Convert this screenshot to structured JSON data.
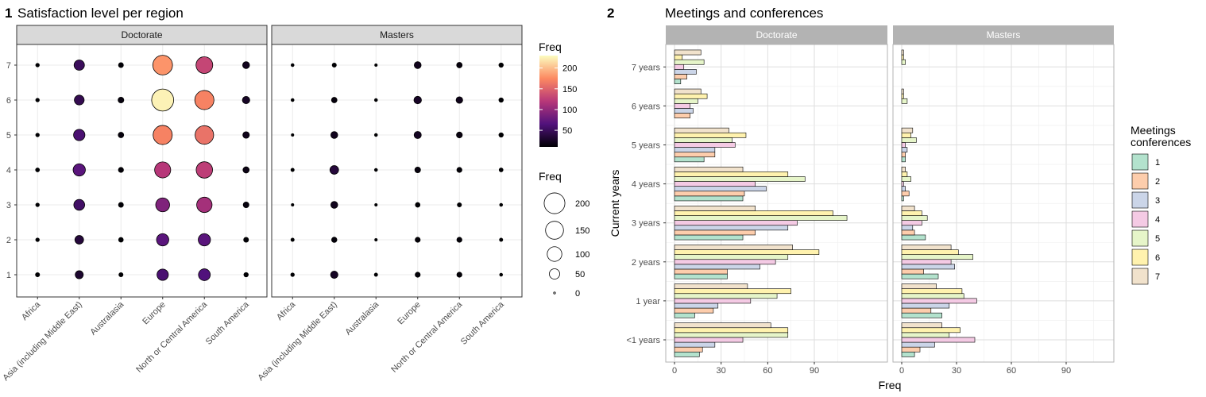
{
  "chart_data": [
    {
      "type": "scatter",
      "number": "1",
      "title": "Satisfaction level per region",
      "facets": [
        "Doctorate",
        "Masters"
      ],
      "x_categories": [
        "Africa",
        "Asia (including Middle East)",
        "Australasia",
        "Europe",
        "North or Central America",
        "South America"
      ],
      "y_ticks": [
        "1",
        "2",
        "3",
        "4",
        "5",
        "6",
        "7"
      ],
      "color_legend": {
        "title": "Freq",
        "ticks": [
          "200",
          "150",
          "100",
          "50"
        ],
        "range": [
          10,
          230
        ],
        "colors": [
          "#000004",
          "#51127c",
          "#b73779",
          "#fc8961",
          "#fcfdbf"
        ]
      },
      "size_legend": {
        "title": "Freq",
        "values": [
          200,
          150,
          100,
          50,
          0
        ],
        "labels": [
          "200",
          "150",
          "100",
          "50",
          "0"
        ],
        "max": 230
      },
      "grid": true,
      "legend_position": "right",
      "points": {
        "Doctorate": [
          [
            8,
            6,
            6,
            7,
            6,
            6,
            6
          ],
          [
            30,
            35,
            55,
            70,
            60,
            45,
            50
          ],
          [
            8,
            10,
            11,
            12,
            14,
            15,
            11
          ],
          [
            60,
            70,
            90,
            120,
            170,
            225,
            180
          ],
          [
            65,
            70,
            110,
            125,
            160,
            170,
            130
          ],
          [
            9,
            11,
            15,
            18,
            20,
            25,
            22
          ]
        ],
        "Masters": [
          [
            6,
            5,
            3,
            5,
            3,
            4,
            4
          ],
          [
            25,
            13,
            22,
            35,
            22,
            14,
            8
          ],
          [
            5,
            3,
            3,
            4,
            4,
            4,
            3
          ],
          [
            12,
            12,
            10,
            15,
            24,
            26,
            22
          ],
          [
            12,
            12,
            8,
            12,
            16,
            20,
            14
          ],
          [
            4,
            5,
            4,
            7,
            9,
            9,
            9
          ]
        ]
      }
    },
    {
      "type": "bar",
      "orientation": "horizontal",
      "number": "2",
      "title": "Meetings and conferences",
      "facets": [
        "Doctorate",
        "Masters"
      ],
      "categories": [
        "<1 years",
        "1 year",
        "2 years",
        "3 years",
        "4 years",
        "5 years",
        "6 years",
        "7 years"
      ],
      "xlabel": "Freq",
      "ylabel": "Current years",
      "xlim": [
        0,
        115
      ],
      "x_ticks": [
        0,
        30,
        60,
        90
      ],
      "grid": true,
      "legend_title_lines": [
        "Meetings",
        "conferences"
      ],
      "legend_position": "right",
      "series": [
        {
          "name": "1",
          "color": "#b3e2cd",
          "doctorate": [
            16,
            13,
            34,
            44,
            44,
            19,
            0,
            4
          ],
          "masters": [
            7,
            22,
            20,
            13,
            1,
            2,
            0,
            0
          ]
        },
        {
          "name": "2",
          "color": "#fdcdac",
          "doctorate": [
            18,
            25,
            34,
            52,
            45,
            26,
            10,
            8
          ],
          "masters": [
            10,
            16,
            12,
            7,
            4,
            2,
            0,
            0
          ]
        },
        {
          "name": "3",
          "color": "#cbd5e8",
          "doctorate": [
            26,
            28,
            55,
            73,
            59,
            26,
            12,
            14
          ],
          "masters": [
            18,
            26,
            29,
            6,
            2,
            3,
            0,
            0
          ]
        },
        {
          "name": "4",
          "color": "#f4cae4",
          "doctorate": [
            44,
            49,
            65,
            79,
            52,
            39,
            10,
            6
          ],
          "masters": [
            40,
            41,
            27,
            11,
            1,
            2,
            0,
            0
          ]
        },
        {
          "name": "5",
          "color": "#e6f5c9",
          "doctorate": [
            73,
            66,
            73,
            111,
            84,
            37,
            15,
            19
          ],
          "masters": [
            26,
            34,
            39,
            14,
            5,
            8,
            3,
            2
          ]
        },
        {
          "name": "6",
          "color": "#fff2ae",
          "doctorate": [
            73,
            75,
            93,
            102,
            73,
            46,
            21,
            5
          ],
          "masters": [
            32,
            33,
            31,
            11,
            3,
            5,
            1,
            1
          ]
        },
        {
          "name": "7",
          "color": "#f1e2cc",
          "doctorate": [
            62,
            47,
            76,
            52,
            44,
            35,
            17,
            17
          ],
          "masters": [
            22,
            19,
            27,
            7,
            2,
            6,
            1,
            1
          ]
        }
      ]
    }
  ]
}
